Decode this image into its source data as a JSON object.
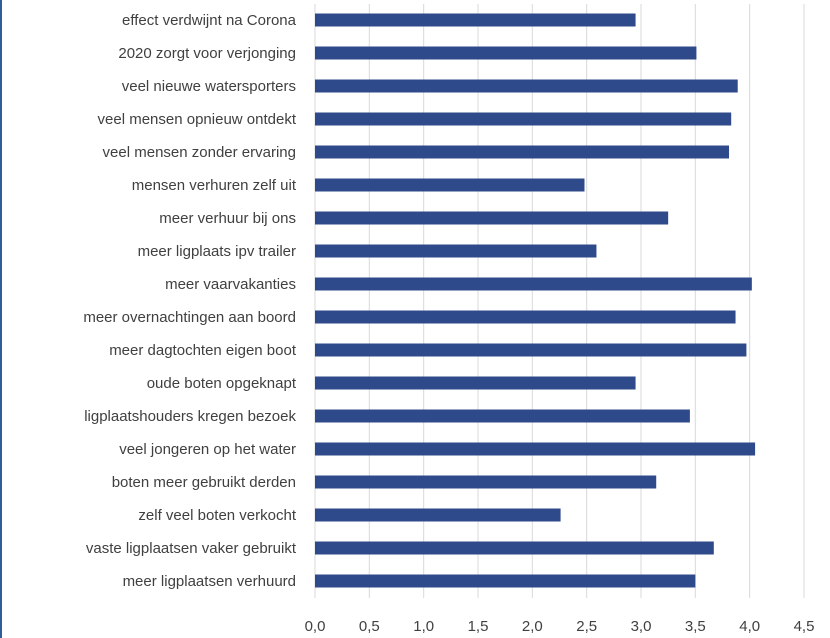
{
  "chart_data": {
    "type": "bar",
    "orientation": "horizontal",
    "categories": [
      "effect verdwijnt na Corona",
      "2020 zorgt voor verjonging",
      "veel nieuwe watersporters",
      "veel mensen opnieuw ontdekt",
      "veel mensen zonder ervaring",
      "mensen verhuren zelf uit",
      "meer verhuur bij ons",
      "meer ligplaats ipv trailer",
      "meer vaarvakanties",
      "meer overnachtingen aan boord",
      "meer dagtochten eigen boot",
      "oude boten opgeknapt",
      "ligplaatshouders kregen bezoek",
      "veel jongeren op het water",
      "boten meer gebruikt derden",
      "zelf veel boten verkocht",
      "vaste ligplaatsen vaker gebruikt",
      "meer ligplaatsen verhuurd"
    ],
    "values": [
      2.95,
      3.51,
      3.89,
      3.83,
      3.81,
      2.48,
      3.25,
      2.59,
      4.02,
      3.87,
      3.97,
      2.95,
      3.45,
      4.05,
      3.14,
      2.26,
      3.67,
      3.5
    ],
    "xlim": [
      0,
      4.5
    ],
    "xticks": [
      "0,0",
      "0,5",
      "1,0",
      "1,5",
      "2,0",
      "2,5",
      "3,0",
      "3,5",
      "4,0",
      "4,5"
    ],
    "grid": true,
    "bar_color": "#2f4a8a",
    "grid_color": "#d9d9d9",
    "title": "",
    "xlabel": "",
    "ylabel": ""
  }
}
